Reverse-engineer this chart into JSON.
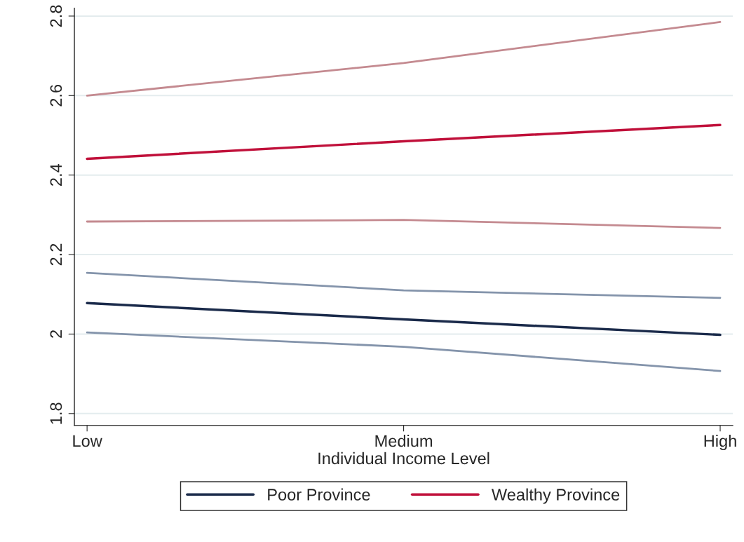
{
  "chart_data": {
    "type": "line",
    "xlabel": "Individual Income Level",
    "categories": [
      "Low",
      "Medium",
      "High"
    ],
    "series": [
      {
        "color": "#8494ab",
        "values": [
          2.154,
          2.11,
          2.091
        ]
      },
      {
        "color": "#8494ab",
        "values": [
          2.004,
          1.968,
          1.907
        ]
      },
      {
        "color": "#c48a90",
        "values": [
          2.6,
          2.682,
          2.785
        ]
      },
      {
        "color": "#c48a90",
        "values": [
          2.283,
          2.287,
          2.267
        ]
      },
      {
        "name": "Poor Province",
        "color": "#1a2a4a",
        "values": [
          2.078,
          2.037,
          1.998
        ]
      },
      {
        "name": "Wealthy Province",
        "color": "#c0103a",
        "values": [
          2.441,
          2.485,
          2.526
        ]
      }
    ],
    "ylim": [
      1.77,
      2.82
    ],
    "yticks": [
      1.8,
      2,
      2.2,
      2.4,
      2.6,
      2.8
    ],
    "grid": "y",
    "legend": "bottom",
    "marker": "none",
    "line_style": "solid"
  }
}
